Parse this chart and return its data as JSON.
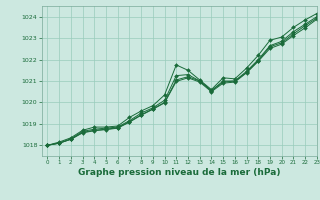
{
  "bg_color": "#cce8e0",
  "grid_color": "#99ccbb",
  "line_color": "#1a6b3a",
  "marker_color": "#1a6b3a",
  "xlabel": "Graphe pression niveau de la mer (hPa)",
  "xlabel_fontsize": 6.5,
  "xlim": [
    -0.5,
    23
  ],
  "ylim": [
    1017.5,
    1024.5
  ],
  "yticks": [
    1018,
    1019,
    1020,
    1021,
    1022,
    1023,
    1024
  ],
  "xticks": [
    0,
    1,
    2,
    3,
    4,
    5,
    6,
    7,
    8,
    9,
    10,
    11,
    12,
    13,
    14,
    15,
    16,
    17,
    18,
    19,
    20,
    21,
    22,
    23
  ],
  "line1": [
    1018.0,
    1018.15,
    1018.35,
    1018.7,
    1018.85,
    1018.85,
    1018.9,
    1019.3,
    1019.6,
    1019.85,
    1020.35,
    1021.75,
    1021.5,
    1021.05,
    1020.6,
    1021.15,
    1021.1,
    1021.6,
    1022.2,
    1022.9,
    1023.05,
    1023.5,
    1023.85,
    1024.15
  ],
  "line2": [
    1018.0,
    1018.1,
    1018.3,
    1018.65,
    1018.75,
    1018.8,
    1018.85,
    1019.15,
    1019.5,
    1019.75,
    1020.1,
    1021.25,
    1021.3,
    1021.0,
    1020.55,
    1021.0,
    1021.0,
    1021.45,
    1022.0,
    1022.65,
    1022.85,
    1023.3,
    1023.65,
    1024.0
  ],
  "line3": [
    1018.0,
    1018.1,
    1018.28,
    1018.6,
    1018.7,
    1018.75,
    1018.82,
    1019.1,
    1019.42,
    1019.7,
    1020.0,
    1021.05,
    1021.2,
    1021.0,
    1020.55,
    1020.95,
    1021.0,
    1021.4,
    1021.95,
    1022.6,
    1022.78,
    1023.2,
    1023.58,
    1023.93
  ],
  "line4": [
    1018.0,
    1018.1,
    1018.28,
    1018.58,
    1018.68,
    1018.73,
    1018.8,
    1019.08,
    1019.4,
    1019.68,
    1019.98,
    1020.98,
    1021.15,
    1020.95,
    1020.5,
    1020.9,
    1020.95,
    1021.38,
    1021.92,
    1022.52,
    1022.72,
    1023.12,
    1023.48,
    1023.88
  ]
}
